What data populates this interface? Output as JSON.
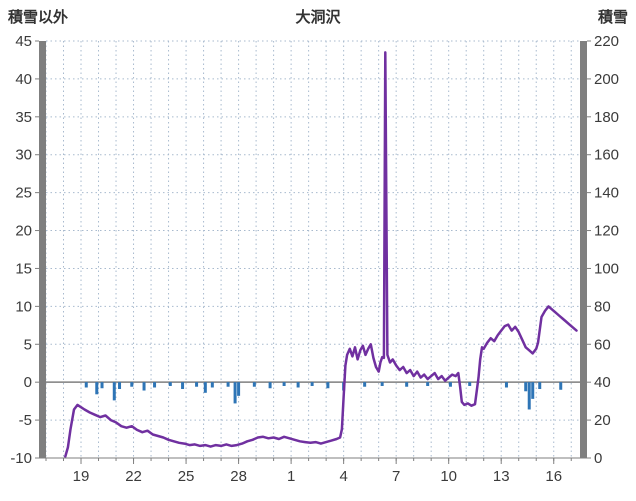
{
  "header": {
    "left_axis_title": "積雪以外",
    "chart_title": "大洞沢",
    "right_axis_title": "積雪"
  },
  "colors": {
    "line": "#7030A0",
    "bar": "#2E75B6",
    "grid": "#A8BACE",
    "axis": "#7F7F7F",
    "zero_line": "#7F7F7F",
    "text": "#3B3B3B"
  },
  "chart_data": {
    "type": "line",
    "title": "大洞沢",
    "left_axis": {
      "label": "積雪以外",
      "min": -10,
      "max": 45,
      "tick_step": 5,
      "ticks": [
        45,
        40,
        35,
        30,
        25,
        20,
        15,
        10,
        5,
        0,
        -5,
        -10
      ]
    },
    "right_axis": {
      "label": "積雪",
      "min": 0,
      "max": 220,
      "tick_step": 20,
      "ticks": [
        220,
        200,
        180,
        160,
        140,
        120,
        100,
        80,
        60,
        40,
        20,
        0
      ]
    },
    "x_axis": {
      "min": 17,
      "max": 47.5,
      "tick_positions": [
        19,
        22,
        25,
        28,
        31,
        34,
        37,
        40,
        43,
        46
      ],
      "tick_labels": [
        "19",
        "22",
        "25",
        "28",
        "1",
        "4",
        "7",
        "10",
        "13",
        "16"
      ],
      "minor_grid_step": 1
    },
    "grid": true,
    "legend": "none",
    "series": [
      {
        "name": "line-series",
        "type": "line",
        "axis": "left",
        "points": [
          [
            18.1,
            -9.8
          ],
          [
            18.25,
            -8.6
          ],
          [
            18.4,
            -6.2
          ],
          [
            18.6,
            -3.6
          ],
          [
            18.8,
            -3.0
          ],
          [
            19.0,
            -3.3
          ],
          [
            19.2,
            -3.6
          ],
          [
            19.5,
            -4.0
          ],
          [
            19.8,
            -4.3
          ],
          [
            20.1,
            -4.6
          ],
          [
            20.4,
            -4.4
          ],
          [
            20.7,
            -5.0
          ],
          [
            21.0,
            -5.3
          ],
          [
            21.3,
            -5.8
          ],
          [
            21.6,
            -6.0
          ],
          [
            21.9,
            -5.8
          ],
          [
            22.2,
            -6.3
          ],
          [
            22.5,
            -6.6
          ],
          [
            22.8,
            -6.4
          ],
          [
            23.1,
            -6.9
          ],
          [
            23.4,
            -7.1
          ],
          [
            23.7,
            -7.3
          ],
          [
            24.0,
            -7.6
          ],
          [
            24.3,
            -7.8
          ],
          [
            24.6,
            -8.0
          ],
          [
            24.9,
            -8.1
          ],
          [
            25.2,
            -8.3
          ],
          [
            25.5,
            -8.2
          ],
          [
            25.8,
            -8.4
          ],
          [
            26.1,
            -8.3
          ],
          [
            26.4,
            -8.5
          ],
          [
            26.7,
            -8.3
          ],
          [
            27.0,
            -8.4
          ],
          [
            27.3,
            -8.2
          ],
          [
            27.6,
            -8.4
          ],
          [
            27.9,
            -8.3
          ],
          [
            28.2,
            -8.1
          ],
          [
            28.5,
            -7.8
          ],
          [
            28.8,
            -7.6
          ],
          [
            29.1,
            -7.3
          ],
          [
            29.4,
            -7.2
          ],
          [
            29.7,
            -7.4
          ],
          [
            30.0,
            -7.3
          ],
          [
            30.3,
            -7.5
          ],
          [
            30.6,
            -7.2
          ],
          [
            30.9,
            -7.4
          ],
          [
            31.2,
            -7.6
          ],
          [
            31.5,
            -7.8
          ],
          [
            31.8,
            -7.9
          ],
          [
            32.1,
            -8.0
          ],
          [
            32.4,
            -7.9
          ],
          [
            32.7,
            -8.1
          ],
          [
            33.0,
            -7.9
          ],
          [
            33.3,
            -7.7
          ],
          [
            33.6,
            -7.5
          ],
          [
            33.8,
            -7.3
          ],
          [
            33.9,
            -6.2
          ],
          [
            34.0,
            -2.0
          ],
          [
            34.1,
            2.2
          ],
          [
            34.2,
            3.6
          ],
          [
            34.35,
            4.4
          ],
          [
            34.5,
            3.4
          ],
          [
            34.65,
            4.6
          ],
          [
            34.8,
            3.0
          ],
          [
            34.95,
            4.2
          ],
          [
            35.1,
            4.8
          ],
          [
            35.25,
            3.6
          ],
          [
            35.4,
            4.4
          ],
          [
            35.55,
            5.0
          ],
          [
            35.7,
            3.2
          ],
          [
            35.85,
            2.0
          ],
          [
            36.0,
            1.4
          ],
          [
            36.1,
            2.6
          ],
          [
            36.2,
            3.3
          ],
          [
            36.3,
            3.2
          ],
          [
            36.38,
            43.5
          ],
          [
            36.5,
            3.6
          ],
          [
            36.65,
            2.6
          ],
          [
            36.8,
            3.0
          ],
          [
            37.0,
            2.2
          ],
          [
            37.2,
            1.6
          ],
          [
            37.4,
            2.0
          ],
          [
            37.6,
            1.2
          ],
          [
            37.8,
            1.6
          ],
          [
            38.0,
            0.8
          ],
          [
            38.2,
            1.4
          ],
          [
            38.4,
            0.6
          ],
          [
            38.6,
            1.0
          ],
          [
            38.8,
            0.4
          ],
          [
            39.0,
            0.8
          ],
          [
            39.2,
            1.2
          ],
          [
            39.4,
            0.4
          ],
          [
            39.6,
            0.8
          ],
          [
            39.8,
            0.2
          ],
          [
            40.0,
            0.6
          ],
          [
            40.2,
            1.0
          ],
          [
            40.4,
            0.8
          ],
          [
            40.55,
            1.2
          ],
          [
            40.65,
            -0.6
          ],
          [
            40.75,
            -2.6
          ],
          [
            40.9,
            -3.0
          ],
          [
            41.1,
            -2.8
          ],
          [
            41.3,
            -3.1
          ],
          [
            41.5,
            -2.9
          ],
          [
            41.6,
            -1.2
          ],
          [
            41.7,
            0.6
          ],
          [
            41.8,
            3.0
          ],
          [
            41.9,
            4.6
          ],
          [
            42.0,
            4.4
          ],
          [
            42.2,
            5.2
          ],
          [
            42.4,
            5.8
          ],
          [
            42.6,
            5.4
          ],
          [
            42.8,
            6.2
          ],
          [
            43.0,
            6.8
          ],
          [
            43.2,
            7.4
          ],
          [
            43.4,
            7.6
          ],
          [
            43.6,
            6.8
          ],
          [
            43.8,
            7.3
          ],
          [
            44.0,
            6.6
          ],
          [
            44.2,
            5.6
          ],
          [
            44.4,
            4.6
          ],
          [
            44.6,
            4.2
          ],
          [
            44.8,
            3.8
          ],
          [
            45.0,
            4.4
          ],
          [
            45.1,
            5.2
          ],
          [
            45.3,
            8.6
          ],
          [
            45.5,
            9.4
          ],
          [
            45.7,
            10.0
          ],
          [
            45.9,
            9.6
          ],
          [
            46.1,
            9.2
          ],
          [
            46.3,
            8.8
          ],
          [
            46.5,
            8.4
          ],
          [
            46.7,
            8.0
          ],
          [
            46.9,
            7.6
          ],
          [
            47.1,
            7.2
          ],
          [
            47.3,
            6.8
          ]
        ]
      },
      {
        "name": "bar-series",
        "type": "bar",
        "axis": "left",
        "points": [
          [
            19.3,
            -0.7
          ],
          [
            19.9,
            -1.6
          ],
          [
            20.2,
            -0.8
          ],
          [
            20.9,
            -2.4
          ],
          [
            21.2,
            -0.9
          ],
          [
            21.9,
            -0.6
          ],
          [
            22.6,
            -1.1
          ],
          [
            23.2,
            -0.7
          ],
          [
            24.1,
            -0.5
          ],
          [
            24.8,
            -0.9
          ],
          [
            25.6,
            -0.6
          ],
          [
            26.1,
            -1.4
          ],
          [
            26.5,
            -0.7
          ],
          [
            27.4,
            -0.6
          ],
          [
            27.8,
            -2.8
          ],
          [
            28.0,
            -1.8
          ],
          [
            28.9,
            -0.6
          ],
          [
            29.8,
            -0.8
          ],
          [
            30.6,
            -0.5
          ],
          [
            31.4,
            -0.7
          ],
          [
            32.2,
            -0.5
          ],
          [
            33.1,
            -0.8
          ],
          [
            34.0,
            -1.1
          ],
          [
            35.2,
            -0.6
          ],
          [
            36.2,
            -0.5
          ],
          [
            37.6,
            -0.6
          ],
          [
            38.8,
            -0.5
          ],
          [
            40.1,
            -0.6
          ],
          [
            41.2,
            -0.5
          ],
          [
            43.3,
            -0.7
          ],
          [
            44.4,
            -1.2
          ],
          [
            44.6,
            -3.6
          ],
          [
            44.8,
            -2.2
          ],
          [
            45.2,
            -0.9
          ],
          [
            46.4,
            -1.0
          ]
        ]
      }
    ]
  }
}
